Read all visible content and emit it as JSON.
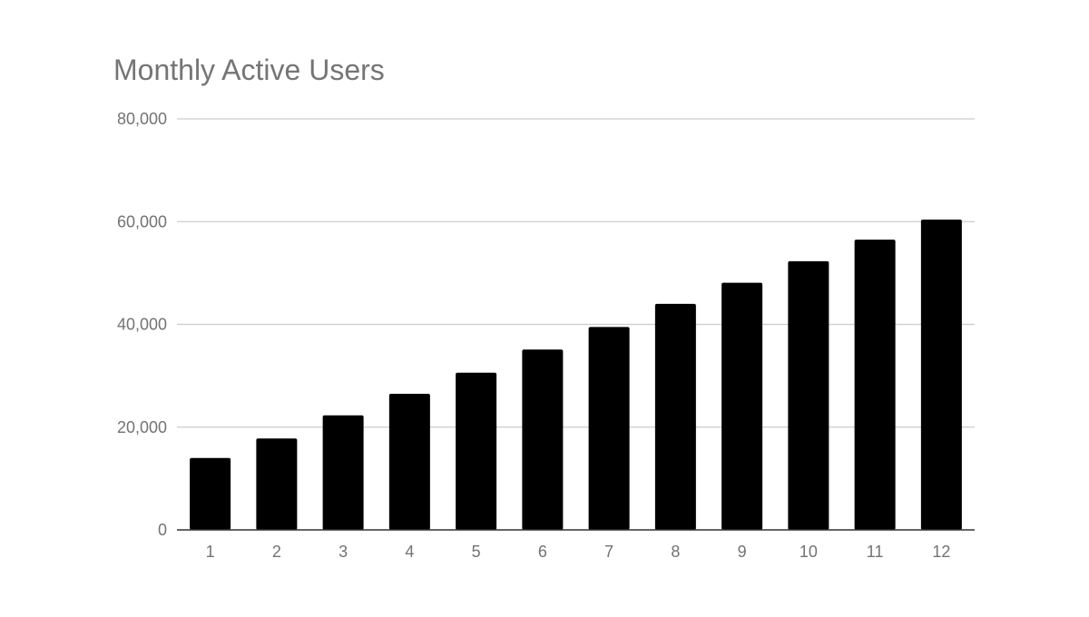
{
  "colors": {
    "bar": "#000000",
    "grid": "#cccccc",
    "axis": "#333333",
    "text": "#757575",
    "background": "#ffffff"
  },
  "chart_data": {
    "type": "bar",
    "title": "Monthly Active Users",
    "xlabel": "",
    "ylabel": "",
    "categories": [
      "1",
      "2",
      "3",
      "4",
      "5",
      "6",
      "7",
      "8",
      "9",
      "10",
      "11",
      "12"
    ],
    "values": [
      14000,
      17800,
      22300,
      26500,
      30600,
      35100,
      39500,
      44000,
      48100,
      52300,
      56500,
      60400
    ],
    "ylim": [
      0,
      80000
    ],
    "yticks": [
      0,
      20000,
      40000,
      60000,
      80000
    ],
    "ytick_labels": [
      "0",
      "20,000",
      "40,000",
      "60,000",
      "80,000"
    ],
    "grid": true,
    "legend": "none"
  }
}
